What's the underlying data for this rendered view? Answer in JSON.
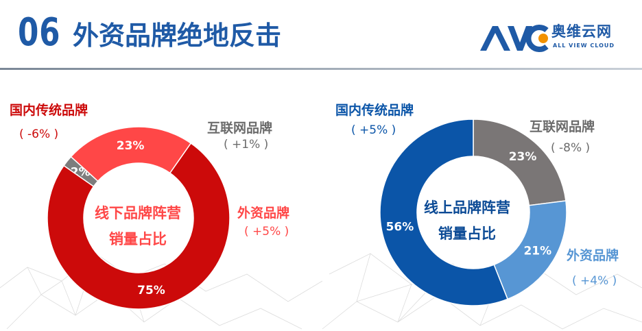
{
  "header": {
    "section_number": "06",
    "title": "外资品牌绝地反击",
    "logo_cn": "奥维云网",
    "logo_en": "ALL VIEW CLOUD",
    "logo_mark_text": "AVC"
  },
  "colors": {
    "brand_blue": "#1f5aa6",
    "offline_domestic": "#cc0a0a",
    "offline_foreign": "#ff4747",
    "offline_internet": "#7d7d7d",
    "online_domestic": "#0b55a8",
    "online_foreign": "#5796d4",
    "online_internet": "#7a7676",
    "gray_text": "#6b6b6b"
  },
  "chart_data": [
    {
      "type": "pie",
      "donut": true,
      "center_label_line1": "线下品牌阵营",
      "center_label_line2": "销量占比",
      "slices": [
        {
          "label": "互联网品牌",
          "value": 2,
          "value_label": "2%",
          "change": "( +1% )"
        },
        {
          "label": "外资品牌",
          "value": 23,
          "value_label": "23%",
          "change": "( +5% )"
        },
        {
          "label": "国内传统品牌",
          "value": 75,
          "value_label": "75%",
          "change": "( -6% )"
        }
      ]
    },
    {
      "type": "pie",
      "donut": true,
      "center_label_line1": "线上品牌阵营",
      "center_label_line2": "销量占比",
      "slices": [
        {
          "label": "互联网品牌",
          "value": 23,
          "value_label": "23%",
          "change": "( -8% )"
        },
        {
          "label": "外资品牌",
          "value": 21,
          "value_label": "21%",
          "change": "( +4% )"
        },
        {
          "label": "国内传统品牌",
          "value": 56,
          "value_label": "56%",
          "change": "( +5% )"
        }
      ]
    }
  ]
}
